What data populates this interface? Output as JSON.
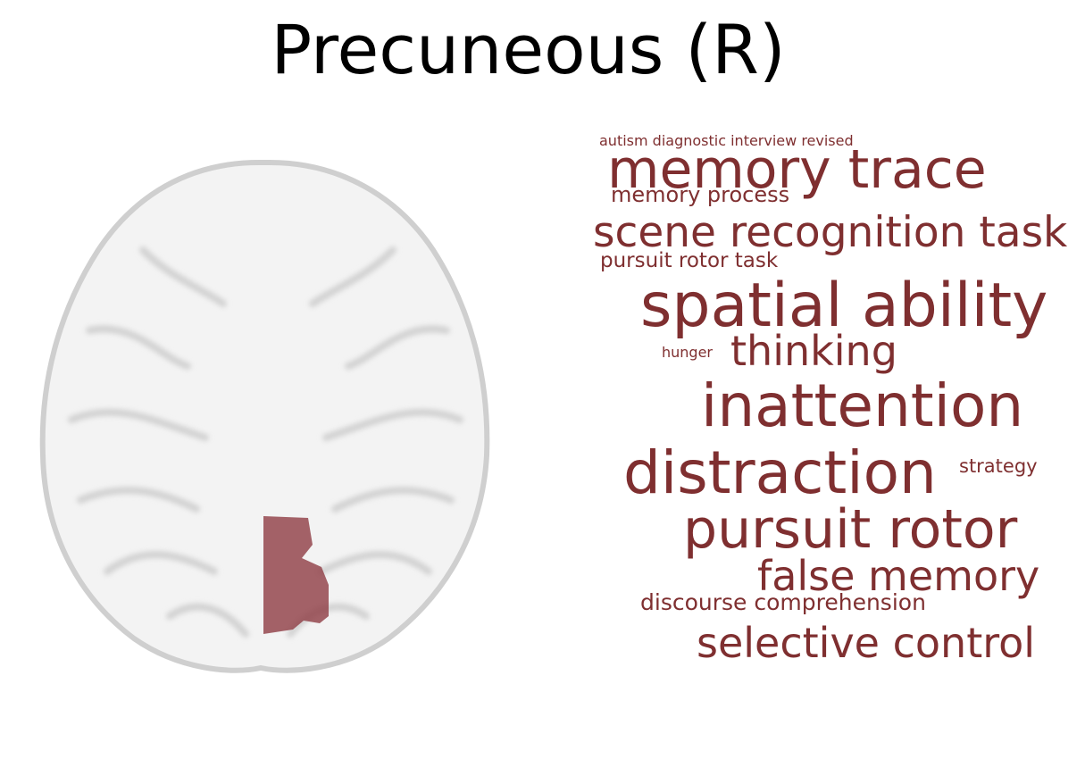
{
  "title": "Precuneous (R)",
  "colors": {
    "word": "#7f2f30",
    "region": "#8f3c43",
    "brain_fill": "#f4f4f4",
    "brain_sulci": "#d6d6d6"
  },
  "words": [
    "autism diagnostic interview revised",
    "memory trace",
    "memory process",
    "scene recognition task",
    "pursuit rotor task",
    "spatial ability",
    "hunger",
    "thinking",
    "inattention",
    "distraction",
    "strategy",
    "pursuit rotor",
    "false memory",
    "discourse comprehension",
    "selective control"
  ]
}
